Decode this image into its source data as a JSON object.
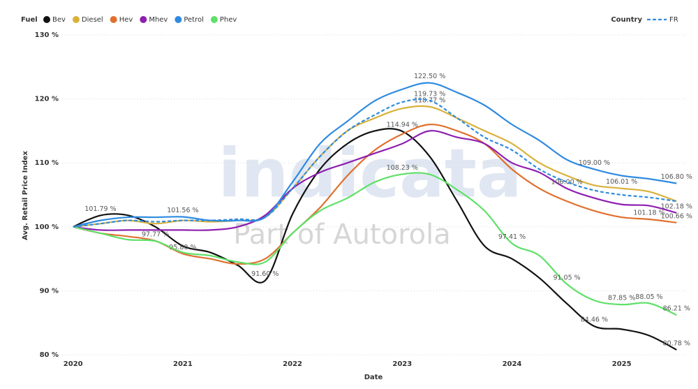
{
  "chart_data": {
    "type": "line",
    "legend_title": "Fuel",
    "country_legend_title": "Country",
    "y_label": "Avg. Retail Price Index",
    "x_label": "Date",
    "watermark": "indicata",
    "watermark_sub": "Part of Autorola",
    "grid": true,
    "xlim": [
      2019.9,
      2025.6
    ],
    "xticks": [
      2020,
      2021,
      2022,
      2023,
      2024,
      2025
    ],
    "ylim": [
      80,
      130
    ],
    "yticks": [
      {
        "value": 80,
        "label": "80 %"
      },
      {
        "value": 90,
        "label": "90 %"
      },
      {
        "value": 100,
        "label": "100 %"
      },
      {
        "value": 110,
        "label": "110 %"
      },
      {
        "value": 120,
        "label": "120 %"
      },
      {
        "value": 130,
        "label": "130 %"
      }
    ],
    "x": [
      2020,
      2020.25,
      2020.5,
      2020.75,
      2021,
      2021.25,
      2021.5,
      2021.75,
      2022,
      2022.25,
      2022.5,
      2022.75,
      2023,
      2023.25,
      2023.5,
      2023.75,
      2024,
      2024.25,
      2024.5,
      2024.75,
      2025,
      2025.25,
      2025.5
    ],
    "series": [
      {
        "name": "Bev",
        "color": "#111111",
        "values": [
          100,
          101.79,
          101.8,
          100,
          97,
          96,
          94,
          91.6,
          102,
          109,
          113,
          115,
          114.94,
          111,
          104,
          97,
          95,
          92,
          88,
          84.46,
          84,
          83,
          80.78
        ],
        "value_labels": [
          null,
          "101.79 %",
          null,
          null,
          null,
          null,
          null,
          "91.60 %",
          null,
          null,
          null,
          null,
          "114.94 %",
          null,
          null,
          null,
          null,
          null,
          null,
          "84.46 %",
          null,
          null,
          "80.78 %"
        ]
      },
      {
        "name": "Diesel",
        "color": "#d9b13b",
        "values": [
          100,
          100.5,
          101,
          100.5,
          101,
          100.8,
          101,
          101.5,
          106,
          111,
          115,
          117,
          118.5,
          118.77,
          117,
          115,
          113,
          110,
          108,
          106.5,
          106.01,
          105.5,
          104
        ],
        "value_labels": [
          null,
          null,
          null,
          null,
          null,
          null,
          null,
          null,
          null,
          null,
          null,
          null,
          null,
          "118.77 %",
          null,
          null,
          null,
          null,
          null,
          null,
          "106.01 %",
          null,
          null
        ]
      },
      {
        "name": "Hev",
        "color": "#e0702e",
        "values": [
          100,
          99,
          98.5,
          97.8,
          95.8,
          95,
          94.2,
          95,
          99,
          103,
          108,
          112,
          114.5,
          116,
          115,
          113,
          109,
          106,
          104,
          102.5,
          101.5,
          101.18,
          100.66
        ],
        "value_labels": [
          null,
          null,
          null,
          null,
          "95.80 %",
          null,
          null,
          null,
          null,
          null,
          null,
          null,
          null,
          null,
          null,
          null,
          null,
          null,
          null,
          null,
          null,
          "101.18 %",
          "100.66 %"
        ]
      },
      {
        "name": "Mhev",
        "color": "#8e1fb0",
        "values": [
          100,
          99.5,
          99.5,
          99.5,
          99.5,
          99.5,
          100,
          101.8,
          106,
          108.5,
          110,
          111.5,
          113,
          115,
          114,
          113,
          110,
          108.5,
          106,
          104.5,
          103.5,
          103.3,
          102.18
        ],
        "value_labels": [
          null,
          null,
          null,
          null,
          null,
          null,
          null,
          null,
          null,
          null,
          null,
          null,
          null,
          null,
          null,
          null,
          null,
          null,
          "106.00 %",
          null,
          null,
          null,
          "102.18 %"
        ]
      },
      {
        "name": "Petrol",
        "color": "#2f8be0",
        "values": [
          100,
          101,
          101.5,
          101.5,
          101.56,
          101,
          101,
          101.5,
          107,
          113,
          116.5,
          119.7,
          121.5,
          122.5,
          121,
          119,
          116,
          113.5,
          110.5,
          109,
          108,
          107.5,
          106.8
        ],
        "value_labels": [
          null,
          null,
          null,
          null,
          "101.56 %",
          null,
          null,
          null,
          null,
          null,
          null,
          null,
          null,
          "122.50 %",
          null,
          null,
          null,
          null,
          null,
          "109.00 %",
          null,
          null,
          "106.80 %"
        ]
      },
      {
        "name": "Phev",
        "color": "#5fe06a",
        "values": [
          100,
          99,
          98,
          97.77,
          96,
          95.5,
          94.5,
          94.5,
          99,
          102.5,
          104.5,
          107,
          108.23,
          108.2,
          105.8,
          102.5,
          97.41,
          95.5,
          91.05,
          88.5,
          87.85,
          88.05,
          86.21
        ],
        "value_labels": [
          null,
          null,
          null,
          "97.77 %",
          null,
          null,
          null,
          null,
          null,
          null,
          null,
          null,
          "108.23 %",
          null,
          null,
          null,
          "97.41 %",
          null,
          "91.05 %",
          null,
          "87.85 %",
          "88.05 %",
          "86.21 %"
        ]
      }
    ],
    "country_series": [
      {
        "name": "FR",
        "color": "#2f8be0",
        "dashed": true,
        "values": [
          100,
          100.5,
          101,
          100.8,
          101,
          101,
          101.2,
          101.5,
          106,
          111,
          115,
          117.5,
          119.5,
          119.73,
          117,
          114,
          112,
          109,
          107,
          105.7,
          105,
          104.6,
          104
        ],
        "value_labels": [
          null,
          null,
          null,
          null,
          null,
          null,
          null,
          null,
          null,
          null,
          null,
          null,
          null,
          "119.73 %",
          null,
          null,
          null,
          null,
          null,
          null,
          null,
          null,
          null
        ]
      }
    ]
  }
}
